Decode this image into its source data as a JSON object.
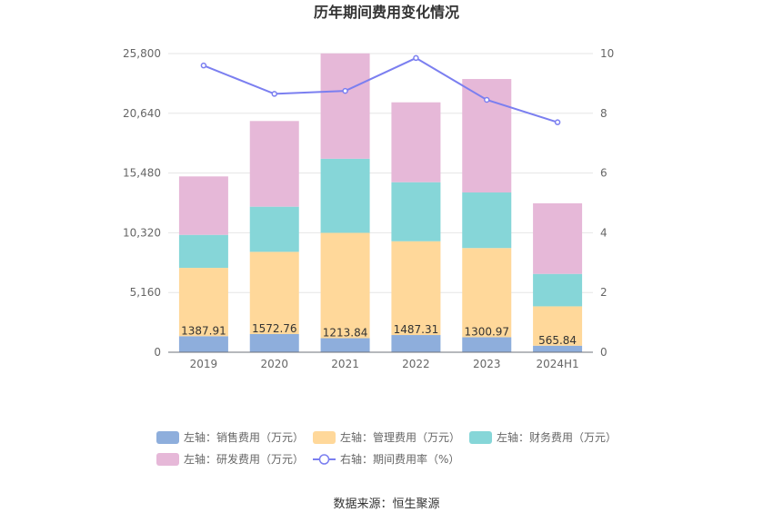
{
  "title": "历年期间费用变化情况",
  "source": "数据来源：恒生聚源",
  "chart_data": {
    "type": "bar",
    "stacked": true,
    "categories": [
      "2019",
      "2020",
      "2021",
      "2022",
      "2023",
      "2024H1"
    ],
    "left_axis": {
      "ylim": [
        0,
        25800
      ],
      "ticks": [
        "0",
        "5,160",
        "10,320",
        "15,480",
        "20,640",
        "25,800"
      ]
    },
    "right_axis": {
      "ylim": [
        0,
        10
      ],
      "ticks": [
        "0",
        "2",
        "4",
        "6",
        "8",
        "10"
      ]
    },
    "series": [
      {
        "name": "左轴：销售费用（万元）",
        "axis": "left",
        "kind": "bar",
        "color": "#8eaedc",
        "values": [
          1387.91,
          1572.76,
          1213.84,
          1487.31,
          1300.97,
          565.84
        ],
        "labels": [
          "1387.91",
          "1572.76",
          "1213.84",
          "1487.31",
          "1300.97",
          "565.84"
        ]
      },
      {
        "name": "左轴：管理费用（万元）",
        "axis": "left",
        "kind": "bar",
        "color": "#ffd89a",
        "values": [
          5900,
          7100,
          9100,
          8100,
          7700,
          3400
        ]
      },
      {
        "name": "左轴：财务费用（万元）",
        "axis": "left",
        "kind": "bar",
        "color": "#86d6d8",
        "values": [
          2850,
          3900,
          6400,
          5100,
          4800,
          2800
        ]
      },
      {
        "name": "左轴：研发费用（万元）",
        "axis": "left",
        "kind": "bar",
        "color": "#e6b8d8",
        "values": [
          5050,
          7400,
          9100,
          6900,
          9800,
          6100
        ]
      },
      {
        "name": "右轴：期间费用率（%）",
        "axis": "right",
        "kind": "line",
        "color": "#7b7ff0",
        "values": [
          9.6,
          8.65,
          8.75,
          9.85,
          8.45,
          7.7
        ]
      }
    ],
    "grid": true,
    "legend_position": "bottom"
  }
}
